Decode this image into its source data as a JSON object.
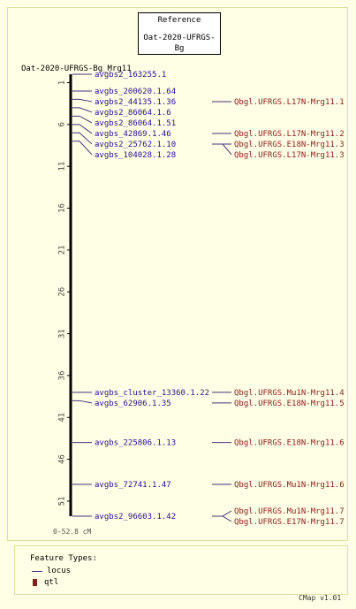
{
  "reference_box": {
    "line1": "Reference",
    "line2": "Oat-2020-UFRGS-Bg"
  },
  "map_title": "Oat-2020-UFRGS-Bg_Mrg11",
  "range_label": "0-52.8 cM",
  "axis": {
    "min": 0,
    "max": 52.8,
    "ticks": [
      "1",
      "6",
      "11",
      "16",
      "21",
      "26",
      "31",
      "36",
      "41",
      "46",
      "51"
    ]
  },
  "loci": [
    {
      "name": "avgbs2_163255.1",
      "pos": 0
    },
    {
      "name": "avgbs_200620.1.64",
      "pos": 2.0
    },
    {
      "name": "avgbs2_44135.1.36",
      "pos": 3.0
    },
    {
      "name": "avgbs2_86064.1.6",
      "pos": 4.0
    },
    {
      "name": "avgbs2_86064.1.51",
      "pos": 5.0
    },
    {
      "name": "avgbs_42869.1.46",
      "pos": 6.0
    },
    {
      "name": "avgbs2_25762.1.10",
      "pos": 7.0
    },
    {
      "name": "avgbs_104028.1.28",
      "pos": 8.0
    },
    {
      "name": "avgbs_cluster_13360.1.22",
      "pos": 38.0
    },
    {
      "name": "avgbs_62906.1.35",
      "pos": 39.0
    },
    {
      "name": "avgbs_225806.1.13",
      "pos": 44.0
    },
    {
      "name": "avgbs_72741.1.47",
      "pos": 49.0
    },
    {
      "name": "avgbs2_96603.1.42",
      "pos": 52.8
    }
  ],
  "qtls": [
    {
      "name": "Qbgl.UFRGS.L17N-Mrg11.1",
      "locus": 2
    },
    {
      "name": "Qbgl.UFRGS.L17N-Mrg11.2",
      "locus": 5
    },
    {
      "name": "Qbgl.UFRGS.E18N-Mrg11.3",
      "locus": 6
    },
    {
      "name": "Qbgl.UFRGS.L17N-Mrg11.3",
      "locus": 6
    },
    {
      "name": "Qbgl.UFRGS.Mu1N-Mrg11.4",
      "locus": 8
    },
    {
      "name": "Qbgl.UFRGS.E18N-Mrg11.5",
      "locus": 9
    },
    {
      "name": "Qbgl.UFRGS.E18N-Mrg11.6",
      "locus": 10
    },
    {
      "name": "Qbgl.UFRGS.Mu1N-Mrg11.6",
      "locus": 11
    },
    {
      "name": "Qbgl.UFRGS.Mu1N-Mrg11.7",
      "locus": 12
    },
    {
      "name": "Qbgl.UFRGS.E17N-Mrg11.7",
      "locus": 12
    }
  ],
  "legend": {
    "title": "Feature Types:",
    "locus_label": "locus",
    "qtl_label": "qtl"
  },
  "version": "CMap v1.01",
  "colors": {
    "locus": "#2a0d8f",
    "qtl": "#8b1a1a",
    "connector": "#4b2f7d"
  }
}
